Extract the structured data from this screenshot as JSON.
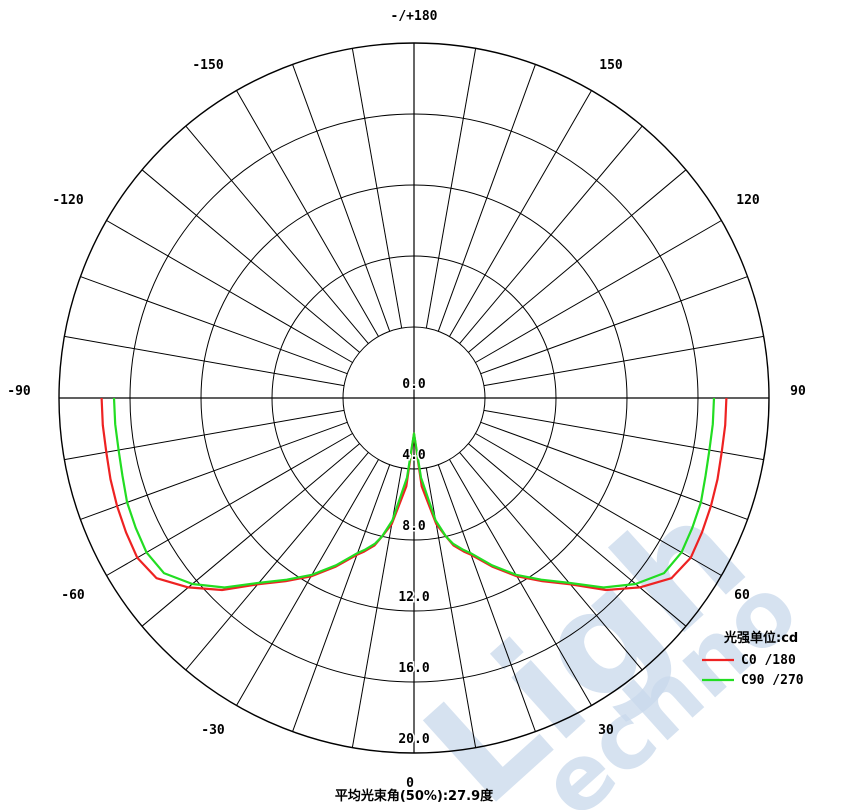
{
  "chart_data": {
    "type": "polar",
    "unit_label": "光强单位:cd",
    "footer": "平均光束角(50%):27.9度",
    "angle_labels": [
      {
        "deg": 180,
        "text": "-/+180"
      },
      {
        "deg": -150,
        "text": "-150"
      },
      {
        "deg": 150,
        "text": "150"
      },
      {
        "deg": -120,
        "text": "-120"
      },
      {
        "deg": 120,
        "text": "120"
      },
      {
        "deg": -90,
        "text": "-90"
      },
      {
        "deg": 90,
        "text": "90"
      },
      {
        "deg": -60,
        "text": "-60"
      },
      {
        "deg": 60,
        "text": "60"
      },
      {
        "deg": -30,
        "text": "-30"
      },
      {
        "deg": 30,
        "text": "30"
      },
      {
        "deg": 0,
        "text": "0"
      }
    ],
    "radial_ticks": [
      "0.0",
      "4.0",
      "8.0",
      "12.0",
      "16.0",
      "20.0"
    ],
    "radial_max": 20,
    "series": [
      {
        "name": "C0  /180",
        "color": "#ee2222",
        "angles": [
          -90,
          -85,
          -80,
          -75,
          -70,
          -65,
          -60,
          -55,
          -50,
          -45,
          -40,
          -35,
          -30,
          -25,
          -20,
          -18,
          -15,
          -13,
          -10,
          -5,
          0,
          5,
          10,
          13,
          15,
          18,
          20,
          25,
          30,
          35,
          40,
          45,
          50,
          55,
          60,
          65,
          70,
          75,
          80,
          85,
          90
        ],
        "values": [
          17.6,
          17.6,
          17.6,
          17.7,
          17.8,
          17.9,
          18.0,
          17.7,
          16.6,
          15.3,
          13.7,
          12.6,
          11.6,
          10.5,
          9.4,
          9.1,
          8.6,
          8.0,
          7.2,
          5.0,
          2.0,
          5.0,
          7.2,
          8.0,
          8.6,
          9.1,
          9.4,
          10.5,
          11.6,
          12.6,
          13.7,
          15.3,
          16.6,
          17.7,
          18.0,
          17.9,
          17.8,
          17.7,
          17.6,
          17.6,
          17.6
        ]
      },
      {
        "name": "C90 /270",
        "color": "#22dd22",
        "angles": [
          -90,
          -85,
          -80,
          -75,
          -70,
          -65,
          -60,
          -55,
          -50,
          -45,
          -40,
          -35,
          -30,
          -25,
          -20,
          -18,
          -15,
          -13,
          -10,
          -5,
          0,
          5,
          10,
          13,
          15,
          18,
          20,
          25,
          30,
          35,
          40,
          45,
          50,
          55,
          60,
          65,
          70,
          75,
          80,
          85,
          90
        ],
        "values": [
          16.9,
          16.9,
          16.9,
          17.0,
          17.2,
          17.3,
          17.4,
          17.2,
          16.3,
          15.1,
          13.6,
          12.5,
          11.5,
          10.4,
          9.3,
          9.0,
          8.5,
          8.0,
          7.0,
          4.5,
          2.0,
          4.5,
          7.0,
          8.0,
          8.5,
          9.0,
          9.3,
          10.4,
          11.5,
          12.5,
          13.6,
          15.1,
          16.3,
          17.2,
          17.4,
          17.3,
          17.2,
          17.0,
          16.9,
          16.9,
          16.9
        ]
      }
    ]
  }
}
